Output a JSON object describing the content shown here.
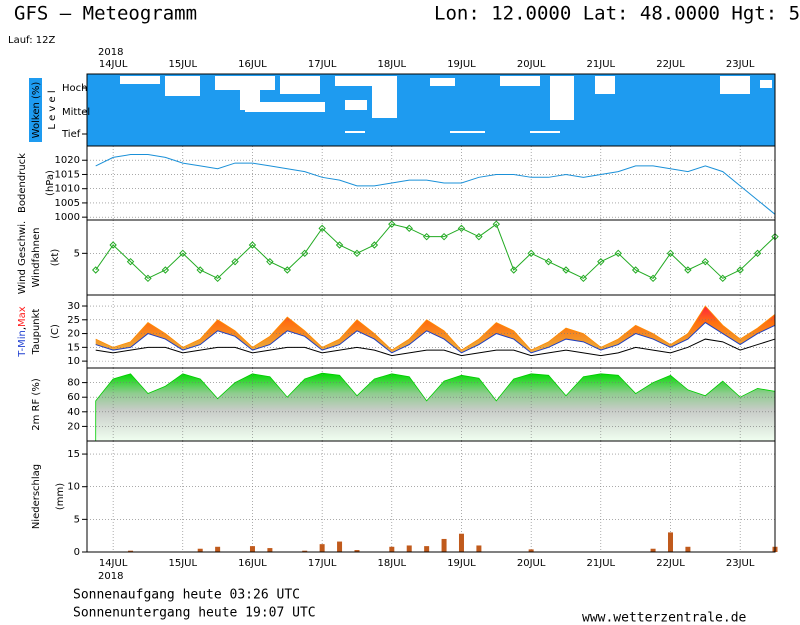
{
  "header": {
    "title": "GFS – Meteogramm",
    "location": "Lon: 12.0000  Lat: 48.0000  Hgt: 5",
    "run": "Lauf: 12Z",
    "year": "2018"
  },
  "footer": {
    "sunrise": "Sonnenaufgang heute 03:26 UTC",
    "sunset": "Sonnenuntergang heute 19:07 UTC",
    "source": "www.wetterzentrale.de"
  },
  "time_axis": {
    "xlim": [
      -9,
      228
    ],
    "xticks": [
      {
        "value": 0,
        "label": "14JUL"
      },
      {
        "value": 24,
        "label": "15JUL"
      },
      {
        "value": 48,
        "label": "16JUL"
      },
      {
        "value": 72,
        "label": "17JUL"
      },
      {
        "value": 96,
        "label": "18JUL"
      },
      {
        "value": 120,
        "label": "19JUL"
      },
      {
        "value": 144,
        "label": "20JUL"
      },
      {
        "value": 168,
        "label": "21JUL"
      },
      {
        "value": 192,
        "label": "22JUL"
      },
      {
        "value": 216,
        "label": "23JUL"
      }
    ],
    "x": [
      -6,
      0,
      6,
      12,
      18,
      24,
      30,
      36,
      42,
      48,
      54,
      60,
      66,
      72,
      78,
      84,
      90,
      96,
      102,
      108,
      114,
      120,
      126,
      132,
      138,
      144,
      150,
      156,
      162,
      168,
      174,
      180,
      186,
      192,
      198,
      204,
      210,
      216,
      222,
      228
    ]
  },
  "chart_data": [
    {
      "type": "cloud",
      "ylabels": [
        {
          "text": "Wolken (%)",
          "color": "#ffffff",
          "bg": "#1e9bf0"
        },
        {
          "text": "L e v e l",
          "color": "#000000"
        }
      ],
      "levels": [
        "Hoch",
        "Mittel",
        "Tief"
      ]
    },
    {
      "type": "line",
      "ylabels": [
        {
          "text": "Bodendruck",
          "color": "#000000"
        },
        {
          "text": "(hPa)",
          "color": "#000000"
        }
      ],
      "ylim": [
        999,
        1025
      ],
      "yticks": [
        1000,
        1005,
        1010,
        1015,
        1020
      ],
      "grid": true,
      "series": [
        {
          "color": "#1a90d8",
          "values": [
            1018,
            1021,
            1022,
            1022,
            1021,
            1019,
            1018,
            1017,
            1019,
            1019,
            1018,
            1017,
            1016,
            1014,
            1013,
            1011,
            1011,
            1012,
            1013,
            1013,
            1012,
            1012,
            1014,
            1015,
            1015,
            1014,
            1014,
            1015,
            1014,
            1015,
            1016,
            1018,
            1018,
            1017,
            1016,
            1018,
            1016,
            1011,
            1006,
            1001
          ]
        }
      ]
    },
    {
      "type": "line",
      "markers": true,
      "ylabels": [
        {
          "text": "Wind Geschwi.",
          "color": "#22aa22"
        },
        {
          "text": "Windfahnen",
          "color": "#000000"
        },
        {
          "text": "(kt)",
          "color": "#000000"
        }
      ],
      "ylim": [
        0,
        9
      ],
      "yticks": [
        5
      ],
      "grid": true,
      "series": [
        {
          "color": "#22aa22",
          "values": [
            3,
            6,
            4,
            2,
            3,
            5,
            3,
            2,
            4,
            6,
            4,
            3,
            5,
            8,
            6,
            5,
            6,
            8.5,
            8,
            7,
            7,
            8,
            7,
            8.5,
            3,
            5,
            4,
            3,
            2,
            4,
            5,
            3,
            2,
            5,
            3,
            4,
            2,
            3,
            5,
            7
          ]
        }
      ]
    },
    {
      "type": "band",
      "ylabels": [
        {
          "parts": [
            {
              "text": "T-Min",
              "color": "#2040d0"
            },
            {
              "text": ",",
              "color": "#000000"
            },
            {
              "text": "Max",
              "color": "#ff2020"
            }
          ]
        },
        {
          "text": "Taupunkt",
          "color": "#000000"
        },
        {
          "text": "(C)",
          "color": "#000000"
        }
      ],
      "ylim": [
        7.5,
        34
      ],
      "yticks": [
        10,
        15,
        20,
        25,
        30
      ],
      "grid": true,
      "series": [
        {
          "color": "#ff8c00",
          "values": [
            18,
            15,
            17,
            24,
            20,
            15,
            18,
            25,
            21,
            15,
            19,
            26,
            21,
            15,
            18,
            25,
            20,
            14,
            18,
            25,
            21,
            14,
            18,
            24,
            21,
            14,
            17,
            22,
            20,
            15,
            18,
            23,
            20,
            16,
            20,
            30,
            23,
            18,
            22,
            27
          ]
        },
        {
          "color": "#2040c0",
          "values": [
            16,
            14,
            15,
            20,
            18,
            14,
            16,
            21,
            19,
            14,
            16,
            21,
            19,
            14,
            16,
            21,
            18,
            13,
            16,
            21,
            18,
            13,
            16,
            20,
            18,
            13,
            15,
            18,
            17,
            14,
            16,
            20,
            18,
            15,
            18,
            24,
            20,
            16,
            20,
            23
          ]
        },
        {
          "color": "#000000",
          "values": [
            14,
            13,
            14,
            15,
            15,
            13,
            14,
            15,
            15,
            13,
            14,
            15,
            15,
            13,
            14,
            15,
            14,
            12,
            13,
            14,
            14,
            12,
            13,
            14,
            14,
            12,
            13,
            14,
            13,
            12,
            13,
            15,
            14,
            13,
            15,
            18,
            17,
            14,
            16,
            18
          ]
        }
      ]
    },
    {
      "type": "area",
      "ylabels": [
        {
          "text": "2m RF (%)",
          "color": "#22aa22"
        }
      ],
      "ylim": [
        0,
        100
      ],
      "yticks": [
        20,
        40,
        60,
        80
      ],
      "grid": true,
      "series": [
        {
          "color": "#00cc00",
          "values": [
            55,
            85,
            92,
            65,
            75,
            92,
            85,
            58,
            80,
            92,
            88,
            60,
            85,
            93,
            90,
            62,
            85,
            92,
            88,
            55,
            82,
            90,
            86,
            55,
            85,
            92,
            90,
            62,
            88,
            92,
            90,
            65,
            80,
            90,
            70,
            62,
            82,
            60,
            72,
            68
          ]
        }
      ]
    },
    {
      "type": "bar",
      "ylabels": [
        {
          "text": "Niederschlag",
          "color": "#000000"
        },
        {
          "text": "(mm)",
          "color": "#000000"
        }
      ],
      "ylim": [
        0,
        17
      ],
      "yticks": [
        0,
        5,
        10,
        15
      ],
      "grid": true,
      "series": [
        {
          "color": "#c05a1c",
          "values": [
            0,
            0,
            0.2,
            0,
            0,
            0,
            0.5,
            0.8,
            0,
            0.9,
            0.6,
            0,
            0.2,
            1.2,
            1.6,
            0.3,
            0,
            0.8,
            1,
            0.9,
            2,
            2.8,
            1,
            0,
            0,
            0.4,
            0,
            0,
            0,
            0,
            0,
            0,
            0.5,
            3,
            0.8,
            0,
            0,
            0,
            0,
            0.8
          ]
        }
      ]
    }
  ]
}
